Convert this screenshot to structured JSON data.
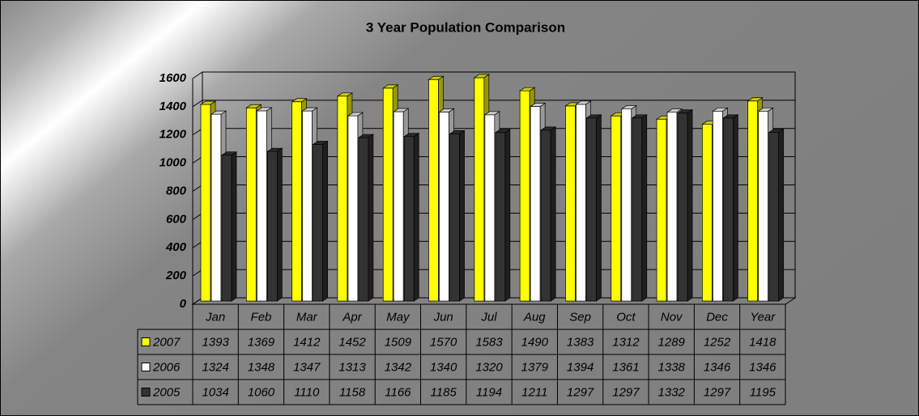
{
  "chart_data": {
    "type": "bar3d",
    "title": "3 Year Population Comparison",
    "categories": [
      "Jan",
      "Feb",
      "Mar",
      "Apr",
      "May",
      "Jun",
      "Jul",
      "Aug",
      "Sep",
      "Oct",
      "Nov",
      "Dec",
      "Year"
    ],
    "series": [
      {
        "name": "2007",
        "color": "#ffff00",
        "values": [
          1393,
          1369,
          1412,
          1452,
          1509,
          1570,
          1583,
          1490,
          1383,
          1312,
          1289,
          1252,
          1418
        ]
      },
      {
        "name": "2006",
        "color": "#ffffff",
        "values": [
          1324,
          1348,
          1347,
          1313,
          1342,
          1340,
          1320,
          1379,
          1394,
          1361,
          1338,
          1346,
          1346
        ]
      },
      {
        "name": "2005",
        "color": "#333333",
        "values": [
          1034,
          1060,
          1110,
          1158,
          1166,
          1185,
          1194,
          1211,
          1297,
          1297,
          1332,
          1297,
          1195
        ]
      }
    ],
    "ylim": [
      0,
      1600
    ],
    "yticks": [
      0,
      200,
      400,
      600,
      800,
      1000,
      1200,
      1400,
      1600
    ],
    "grid": true
  }
}
